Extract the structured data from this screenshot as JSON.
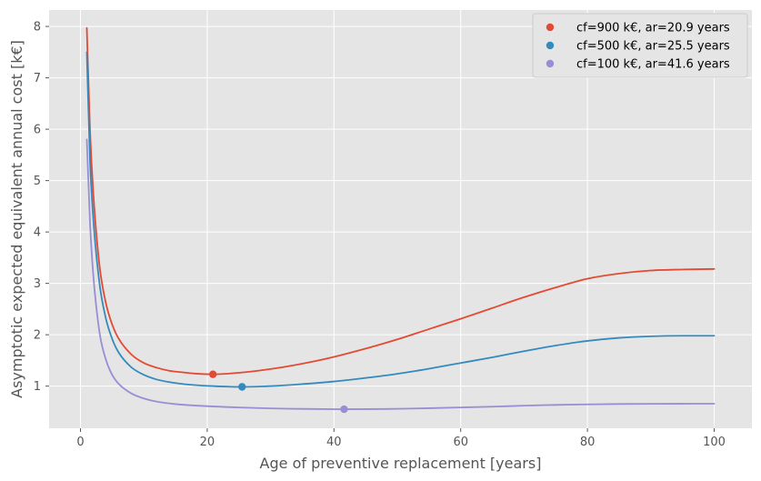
{
  "chart_data": {
    "type": "line",
    "xlabel": "Age of preventive replacement [years]",
    "ylabel": "Asymptotic expected equivalent annual cost [k€]",
    "xlim": [
      -4.95,
      105.95
    ],
    "ylim": [
      0.18,
      8.32
    ],
    "xticks": [
      0,
      20,
      40,
      60,
      80,
      100
    ],
    "yticks": [
      1,
      2,
      3,
      4,
      5,
      6,
      7,
      8
    ],
    "grid": true,
    "legend_position": "top-right",
    "series": [
      {
        "name": "cf=900 k€, ar=20.9 years",
        "color": "#E24A33",
        "x": [
          1,
          1.5,
          2,
          3,
          4,
          5,
          6,
          8,
          10,
          12,
          14,
          16,
          18,
          20.9,
          24,
          28,
          32,
          36,
          40,
          45,
          50,
          55,
          60,
          65,
          70,
          75,
          80,
          85,
          90,
          95,
          100
        ],
        "y": [
          7.97,
          6.0,
          4.8,
          3.35,
          2.62,
          2.2,
          1.93,
          1.62,
          1.45,
          1.36,
          1.3,
          1.27,
          1.245,
          1.23,
          1.25,
          1.3,
          1.37,
          1.46,
          1.57,
          1.73,
          1.91,
          2.11,
          2.31,
          2.52,
          2.73,
          2.92,
          3.09,
          3.19,
          3.25,
          3.27,
          3.28
        ],
        "optimum": {
          "x": 20.9,
          "y": 1.23
        }
      },
      {
        "name": "cf=500 k€, ar=25.5 years",
        "color": "#348ABD",
        "x": [
          1,
          1.5,
          2,
          3,
          4,
          5,
          6,
          8,
          10,
          12,
          15,
          18,
          21,
          25.5,
          30,
          35,
          40,
          45,
          50,
          55,
          60,
          65,
          70,
          75,
          80,
          85,
          90,
          95,
          100
        ],
        "y": [
          7.5,
          5.4,
          4.3,
          3.0,
          2.32,
          1.92,
          1.66,
          1.37,
          1.22,
          1.13,
          1.06,
          1.02,
          1.0,
          0.985,
          1.0,
          1.04,
          1.09,
          1.16,
          1.24,
          1.34,
          1.45,
          1.56,
          1.68,
          1.79,
          1.88,
          1.94,
          1.97,
          1.98,
          1.98
        ],
        "optimum": {
          "x": 25.5,
          "y": 0.985
        }
      },
      {
        "name": "cf=100 k€, ar=41.6 years",
        "color": "#988ED5",
        "x": [
          1,
          1.5,
          2,
          3,
          4,
          5,
          6,
          8,
          10,
          12,
          15,
          20,
          25,
          30,
          35,
          41.6,
          48,
          55,
          60,
          65,
          70,
          75,
          80,
          85,
          90,
          95,
          100
        ],
        "y": [
          5.8,
          4.2,
          3.2,
          2.05,
          1.52,
          1.22,
          1.05,
          0.86,
          0.76,
          0.7,
          0.65,
          0.61,
          0.585,
          0.567,
          0.557,
          0.55,
          0.555,
          0.57,
          0.585,
          0.6,
          0.62,
          0.635,
          0.645,
          0.652,
          0.655,
          0.657,
          0.658
        ],
        "optimum": {
          "x": 41.6,
          "y": 0.55
        }
      }
    ]
  }
}
